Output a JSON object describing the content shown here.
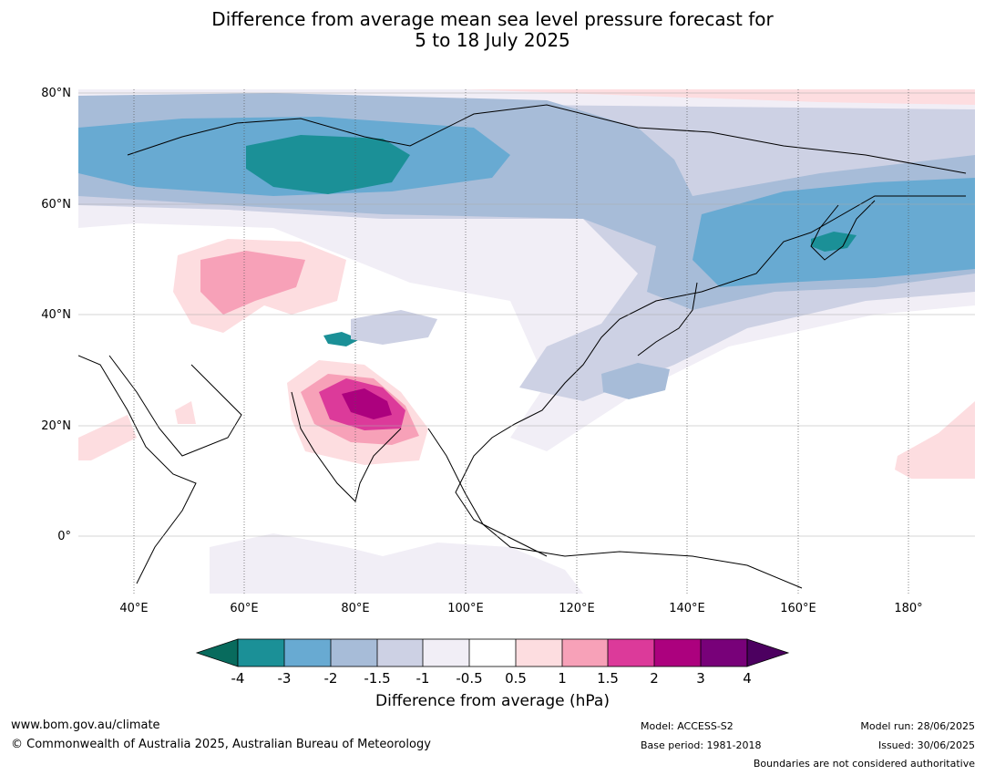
{
  "title_line1": "Difference from average mean sea level pressure forecast for",
  "title_line2": "5 to 18 July 2025",
  "lat_labels": [
    "80°N",
    "60°N",
    "40°N",
    "20°N",
    "0°"
  ],
  "lon_labels": [
    "40°E",
    "60°E",
    "80°E",
    "100°E",
    "120°E",
    "140°E",
    "160°E",
    "180°"
  ],
  "colorbar": {
    "title": "Difference from average (hPa)",
    "tick_labels": [
      "-4",
      "-3",
      "-2",
      "-1.5",
      "-1",
      "-0.5",
      "0.5",
      "1",
      "1.5",
      "2",
      "3",
      "4"
    ],
    "colors": {
      "below_-4": "#086b5d",
      "-4_-3": "#1b9097",
      "-3_-2": "#68aad2",
      "-2_-1.5": "#a7bcd8",
      "-1.5_-1": "#cdd1e4",
      "-1_-0.5": "#f1eef6",
      "-0.5_0.5": "#ffffff",
      "0.5_1": "#fddde0",
      "1_1.5": "#f7a1b8",
      "1.5_2": "#dc3a9a",
      "2_3": "#ac017e",
      "3_4": "#780179",
      "above_4": "#4c0060"
    }
  },
  "footer": {
    "url": "www.bom.gov.au/climate",
    "copyright": "© Commonwealth of Australia 2025, Australian Bureau of Meteorology",
    "model": "Model: ACCESS-S2",
    "base_period": "Base period: 1981-2018",
    "model_run": "Model run: 28/06/2025",
    "issued": "Issued: 30/06/2025",
    "disclaimer": "Boundaries are not considered authoritative"
  }
}
